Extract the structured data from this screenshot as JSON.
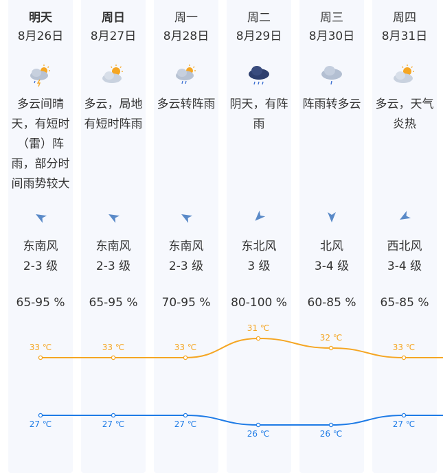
{
  "days": [
    {
      "day": "明天",
      "date": "8月26日",
      "icon": "cloudy-sun-thunder-rain-icon",
      "desc": "多云间晴天，有短时（雷）阵雨，部分时间雨势较大",
      "wind_dir": "东南风",
      "wind_level": "2-3 级",
      "humidity": "65-95 %",
      "high": "33 ℃",
      "low": "27 ℃"
    },
    {
      "day": "周日",
      "date": "8月27日",
      "icon": "partly-cloudy-sun-icon",
      "desc": "多云，局地有短时阵雨",
      "wind_dir": "东南风",
      "wind_level": "2-3 级",
      "humidity": "65-95 %",
      "high": "33 ℃",
      "low": "27 ℃"
    },
    {
      "day": "周一",
      "date": "8月28日",
      "icon": "cloudy-sun-rain-icon",
      "desc": "多云转阵雨",
      "wind_dir": "东南风",
      "wind_level": "2-3 级",
      "humidity": "70-95 %",
      "high": "33 ℃",
      "low": "27 ℃"
    },
    {
      "day": "周二",
      "date": "8月29日",
      "icon": "overcast-rain-icon",
      "desc": "阴天，有阵雨",
      "wind_dir": "东北风",
      "wind_level": "3 级",
      "humidity": "80-100 %",
      "high": "31 ℃",
      "low": "26 ℃"
    },
    {
      "day": "周三",
      "date": "8月30日",
      "icon": "cloud-shower-icon",
      "desc": "阵雨转多云",
      "wind_dir": "北风",
      "wind_level": "3-4 级",
      "humidity": "60-85 %",
      "high": "32 ℃",
      "low": "26 ℃"
    },
    {
      "day": "周四",
      "date": "8月31日",
      "icon": "partly-cloudy-sun-icon",
      "desc": "多云，天气炎热",
      "wind_dir": "西北风",
      "wind_level": "3-4 级",
      "humidity": "65-85 %",
      "high": "33 ℃",
      "low": "27 ℃"
    }
  ],
  "chart_data": {
    "type": "line",
    "categories": [
      "8月26日",
      "8月27日",
      "8月28日",
      "8月29日",
      "8月30日",
      "8月31日"
    ],
    "series": [
      {
        "values": [
          33,
          33,
          33,
          31,
          32,
          33
        ]
      },
      {
        "values": [
          27,
          27,
          27,
          26,
          26,
          27
        ]
      }
    ],
    "colors": {
      "high": "#f5a623",
      "low": "#1e7be6"
    }
  },
  "colors": {
    "column_bg": "#f6f8fd",
    "text": "#333333",
    "wind_arrow": "#5a8ac8"
  }
}
